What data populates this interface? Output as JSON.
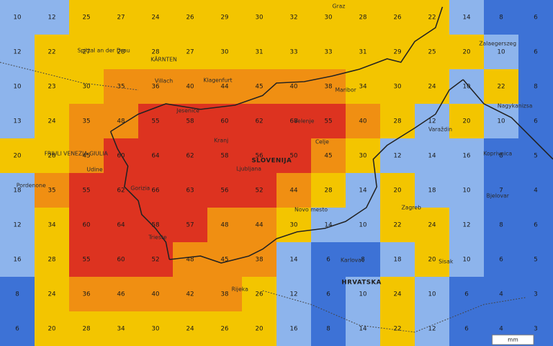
{
  "map": {
    "unit": "mm",
    "color_scale": {
      "thresholds": [
        10,
        20,
        35,
        50
      ],
      "colors": [
        "#3d72d6",
        "#8db4ec",
        "#f3c500",
        "#f08f12",
        "#dd3320"
      ]
    },
    "grid": [
      [
        10,
        12,
        25,
        27,
        24,
        26,
        29,
        30,
        32,
        30,
        28,
        26,
        22,
        14,
        8,
        6
      ],
      [
        12,
        22,
        27,
        28,
        28,
        27,
        30,
        31,
        33,
        33,
        31,
        29,
        25,
        20,
        10,
        6
      ],
      [
        10,
        23,
        30,
        35,
        36,
        40,
        44,
        45,
        40,
        38,
        34,
        30,
        24,
        10,
        22,
        8
      ],
      [
        13,
        24,
        35,
        48,
        55,
        58,
        60,
        62,
        68,
        55,
        40,
        28,
        12,
        20,
        10,
        6
      ],
      [
        20,
        28,
        45,
        60,
        64,
        62,
        58,
        56,
        50,
        45,
        30,
        12,
        14,
        16,
        8,
        5
      ],
      [
        18,
        35,
        55,
        62,
        66,
        63,
        56,
        52,
        44,
        28,
        14,
        20,
        18,
        10,
        7,
        4
      ],
      [
        12,
        34,
        60,
        64,
        58,
        57,
        48,
        44,
        30,
        14,
        10,
        22,
        24,
        12,
        8,
        6
      ],
      [
        16,
        28,
        55,
        60,
        52,
        48,
        45,
        38,
        14,
        6,
        8,
        18,
        20,
        10,
        6,
        5
      ],
      [
        8,
        24,
        36,
        46,
        40,
        42,
        38,
        26,
        12,
        6,
        10,
        24,
        10,
        6,
        4,
        3
      ],
      [
        6,
        20,
        28,
        34,
        30,
        24,
        26,
        20,
        16,
        8,
        14,
        22,
        12,
        6,
        4,
        3
      ]
    ],
    "places": [
      "Graz",
      "Spittal an der Drau",
      "KÄRNTEN",
      "Villach",
      "Klagenfurt",
      "Maribor",
      "Jesenice",
      "Kranj",
      "Velenje",
      "Celje",
      "Ljubljana",
      "Udine",
      "Pordenone",
      "Gorizia",
      "Trieste",
      "Novo mesto",
      "Rijeka",
      "Zagreb",
      "Karlovac",
      "Sisak",
      "Varaždin",
      "Koprivnica",
      "Bjelovar",
      "Nagykanizsa",
      "Zalaegerszeg"
    ],
    "regions": [
      "SLOVENIJA",
      "HRVATSKA",
      "FRIULI VENEZIA GIULIA"
    ]
  }
}
